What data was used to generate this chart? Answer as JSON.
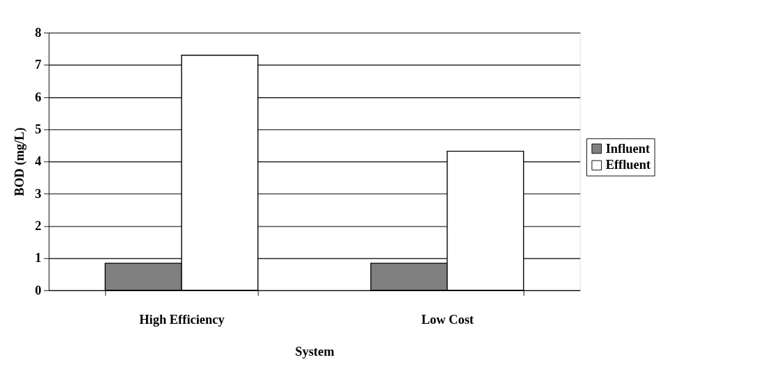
{
  "chart_data": {
    "type": "bar",
    "xlabel": "System",
    "ylabel": "BOD (mg/L)",
    "categories": [
      "High Efficiency",
      "Low Cost"
    ],
    "series": [
      {
        "name": "Influent",
        "color": "#808080",
        "values": [
          0.84,
          0.84
        ]
      },
      {
        "name": "Effluent",
        "color": "#ffffff",
        "values": [
          7.3,
          4.32
        ]
      }
    ],
    "ylim": [
      0,
      8
    ],
    "yticks": [
      0,
      1,
      2,
      3,
      4,
      5,
      6,
      7,
      8
    ],
    "grid": "y",
    "legend": "right"
  }
}
